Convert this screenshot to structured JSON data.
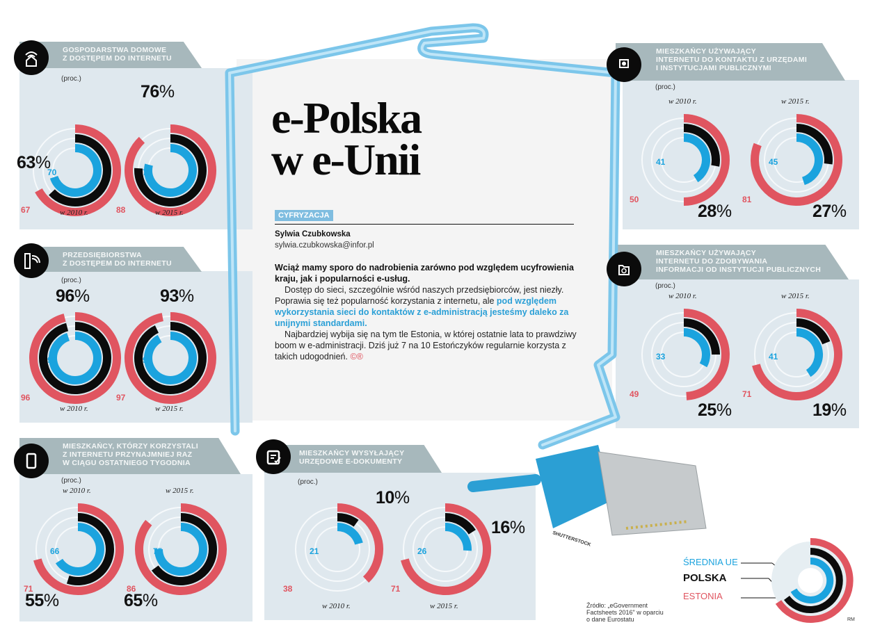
{
  "headline": {
    "line1": "e-Polska",
    "line2": "w e-Unii"
  },
  "article": {
    "tag": "CYFRYZACJA",
    "author": "Sylwia Czubkowska",
    "email": "sylwia.czubkowska@infor.pl",
    "lead": "Wciąż mamy sporo do nadrobienia zarówno pod względem ucyfrowienia kraju, jak i popularności e-usług.",
    "p1_start": "Dostęp do sieci, szczególnie wśród naszych przedsiębiorców, jest niezły. Poprawia się też popularność korzystania z internetu, ale ",
    "p1_highlight": "pod względem wykorzystania sieci do kontaktów z e-administracją jesteśmy daleko za unijnymi standardami.",
    "p2": "Najbardziej wybija się na tym tle Estonia, w której ostatnie lata to prawdziwy boom w e-administracji. Dziś już 7 na 10 Estończyków regularnie korzysta z takich udogodnień.",
    "end_mark": "©®"
  },
  "legend": {
    "eu": "ŚREDNIA UE",
    "poland": "POLSKA",
    "estonia": "ESTONIA"
  },
  "source": {
    "line1": "Źródło: „eGovernment",
    "line2": "Factsheets 2016\" w oparciu",
    "line3": "o dane Eurostatu"
  },
  "photo_credit": "SHUTTERSTOCK",
  "initials": "RM",
  "unit": "(proc.)",
  "years": {
    "y2010": "w 2010 r.",
    "y2015": "w 2015 r."
  },
  "colors": {
    "estonia": "#e05560",
    "poland": "#0b0b0b",
    "eu": "#1ba3de",
    "panel": "#dfe8ee",
    "tab": "#a7b8bc"
  },
  "panels": [
    {
      "id": "households",
      "title_l1": "GOSPODARSTWA DOMOWE",
      "title_l2": "Z DOSTĘPEM DO INTERNETU",
      "title_l3": "",
      "pl2010": "63%",
      "ee2010": "67",
      "eu2010": "70",
      "pl2015": "76%",
      "ee2015": "88",
      "eu2015": "79"
    },
    {
      "id": "enterprises",
      "title_l1": "PRZEDSIĘBIORSTWA",
      "title_l2": "Z DOSTĘPEM DO INTERNETU",
      "title_l3": "",
      "pl2010": "96%",
      "ee2010": "96",
      "eu2010": "95",
      "pl2015": "93%",
      "ee2015": "97",
      "eu2015": "92"
    },
    {
      "id": "weekly-users",
      "title_l1": "MIESZKAŃCY, KTÓRZY KORZYSTALI",
      "title_l2": "Z INTERNETU PRZYNAJMNIEJ RAZ",
      "title_l3": "W CIĄGU OSTATNIEGO TYGODNIA",
      "pl2010": "55%",
      "ee2010": "71",
      "eu2010": "66",
      "pl2015": "65%",
      "ee2015": "86",
      "eu2015": "75"
    },
    {
      "id": "e-documents",
      "title_l1": "MIESZKAŃCY WYSYŁAJĄCY",
      "title_l2": "URZĘDOWE E-DOKUMENTY",
      "title_l3": "",
      "pl2010": "10%",
      "ee2010": "38",
      "eu2010": "21",
      "pl2015": "16%",
      "ee2015": "71",
      "eu2015": "26"
    },
    {
      "id": "contact-offices",
      "title_l1": "MIESZKAŃCY UŻYWAJĄCY",
      "title_l2": "INTERNETU DO KONTAKTU Z URZĘDAMI",
      "title_l3": "I INSTYTUCJAMI PUBLICZNYMI",
      "pl2010": "28%",
      "ee2010": "50",
      "eu2010": "41",
      "pl2015": "27%",
      "ee2015": "81",
      "eu2015": "45"
    },
    {
      "id": "info-institutions",
      "title_l1": "MIESZKAŃCY UŻYWAJĄCY",
      "title_l2": "INTERNETU DO ZDOBYWANIA",
      "title_l3": "INFORMACJI OD INSTYTUCJI PUBLICZNYCH",
      "pl2010": "25%",
      "ee2010": "49",
      "eu2010": "33",
      "pl2015": "19%",
      "ee2015": "71",
      "eu2015": "41"
    }
  ],
  "chart_data": [
    {
      "type": "radial-bar",
      "title": "Gospodarstwa domowe z dostępem do internetu",
      "unit": "proc.",
      "categories": [
        "2010",
        "2015"
      ],
      "series": [
        {
          "name": "Estonia",
          "values": [
            67,
            88
          ]
        },
        {
          "name": "Polska",
          "values": [
            63,
            76
          ]
        },
        {
          "name": "Średnia UE",
          "values": [
            70,
            79
          ]
        }
      ]
    },
    {
      "type": "radial-bar",
      "title": "Przedsiębiorstwa z dostępem do internetu",
      "unit": "proc.",
      "categories": [
        "2010",
        "2015"
      ],
      "series": [
        {
          "name": "Estonia",
          "values": [
            96,
            97
          ]
        },
        {
          "name": "Polska",
          "values": [
            96,
            93
          ]
        },
        {
          "name": "Średnia UE",
          "values": [
            95,
            92
          ]
        }
      ]
    },
    {
      "type": "radial-bar",
      "title": "Mieszkańcy, którzy korzystali z internetu przynajmniej raz w ciągu ostatniego tygodnia",
      "unit": "proc.",
      "categories": [
        "2010",
        "2015"
      ],
      "series": [
        {
          "name": "Estonia",
          "values": [
            71,
            86
          ]
        },
        {
          "name": "Polska",
          "values": [
            55,
            65
          ]
        },
        {
          "name": "Średnia UE",
          "values": [
            66,
            75
          ]
        }
      ]
    },
    {
      "type": "radial-bar",
      "title": "Mieszkańcy wysyłający urzędowe e-dokumenty",
      "unit": "proc.",
      "categories": [
        "2010",
        "2015"
      ],
      "series": [
        {
          "name": "Estonia",
          "values": [
            38,
            71
          ]
        },
        {
          "name": "Polska",
          "values": [
            10,
            16
          ]
        },
        {
          "name": "Średnia UE",
          "values": [
            21,
            26
          ]
        }
      ]
    },
    {
      "type": "radial-bar",
      "title": "Mieszkańcy używający internetu do kontaktu z urzędami i instytucjami publicznymi",
      "unit": "proc.",
      "categories": [
        "2010",
        "2015"
      ],
      "series": [
        {
          "name": "Estonia",
          "values": [
            50,
            81
          ]
        },
        {
          "name": "Polska",
          "values": [
            28,
            27
          ]
        },
        {
          "name": "Średnia UE",
          "values": [
            41,
            45
          ]
        }
      ]
    },
    {
      "type": "radial-bar",
      "title": "Mieszkańcy używający internetu do zdobywania informacji od instytucji publicznych",
      "unit": "proc.",
      "categories": [
        "2010",
        "2015"
      ],
      "series": [
        {
          "name": "Estonia",
          "values": [
            49,
            71
          ]
        },
        {
          "name": "Polska",
          "values": [
            25,
            19
          ]
        },
        {
          "name": "Średnia UE",
          "values": [
            33,
            41
          ]
        }
      ]
    }
  ]
}
